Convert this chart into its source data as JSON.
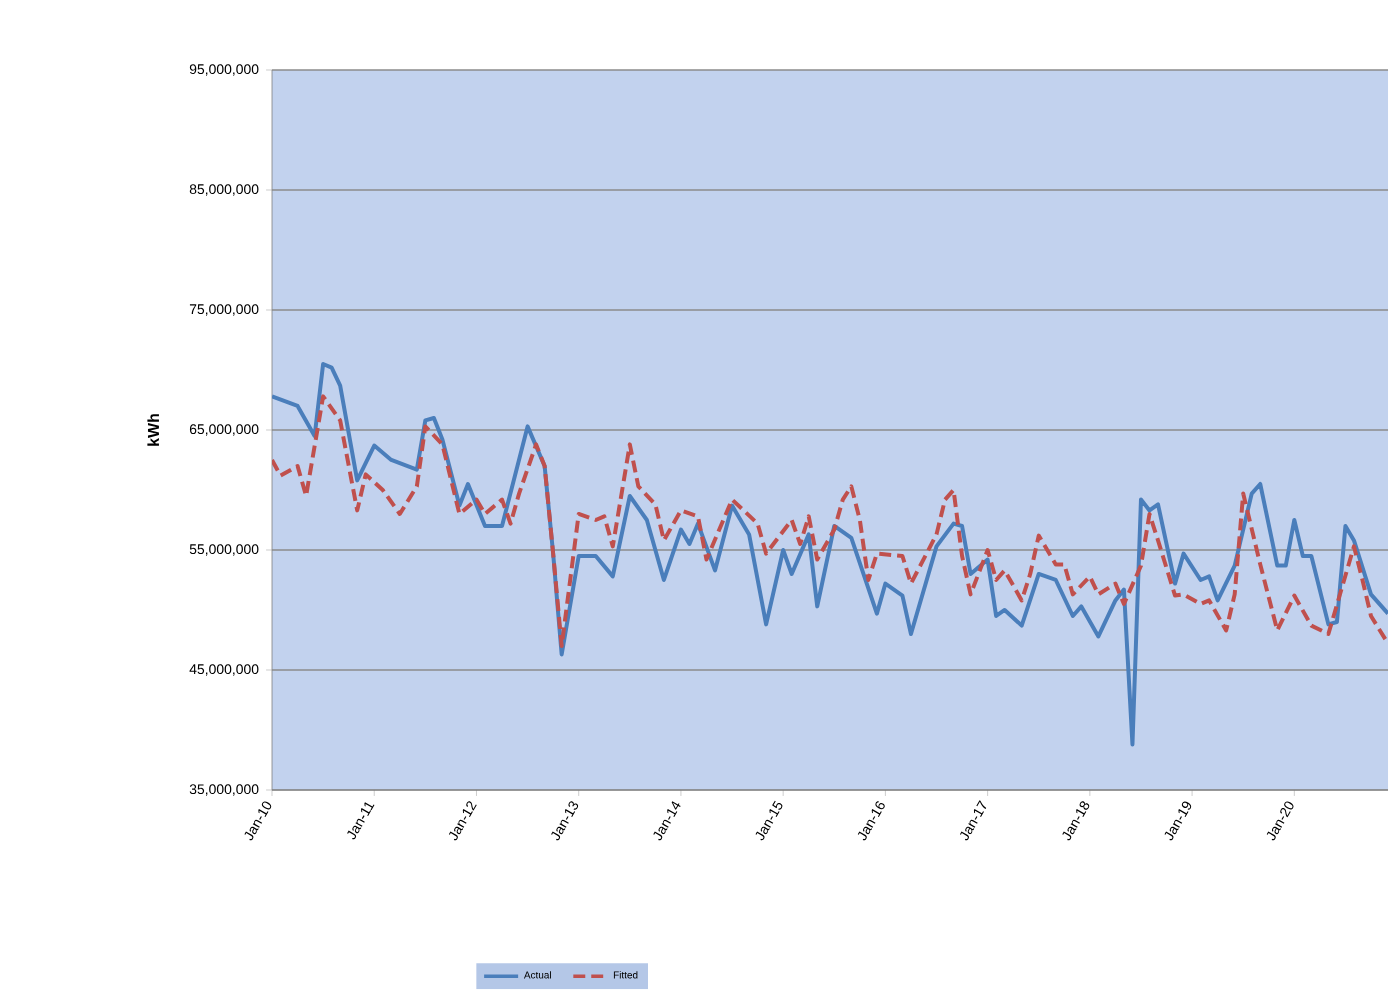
{
  "chart_data": {
    "type": "line",
    "ylabel": "kWh",
    "xlim": [
      "2010-01",
      "2020-12"
    ],
    "xticks": [
      {
        "value": "2010-01",
        "label": "Jan-10"
      },
      {
        "value": "2011-01",
        "label": "Jan-11"
      },
      {
        "value": "2012-01",
        "label": "Jan-12"
      },
      {
        "value": "2013-01",
        "label": "Jan-13"
      },
      {
        "value": "2014-01",
        "label": "Jan-14"
      },
      {
        "value": "2015-01",
        "label": "Jan-15"
      },
      {
        "value": "2016-01",
        "label": "Jan-16"
      },
      {
        "value": "2017-01",
        "label": "Jan-17"
      },
      {
        "value": "2018-01",
        "label": "Jan-18"
      },
      {
        "value": "2019-01",
        "label": "Jan-19"
      },
      {
        "value": "2020-01",
        "label": "Jan-20"
      }
    ],
    "ylim": [
      35000000,
      95000000
    ],
    "yticks": [
      {
        "value": 35000000,
        "label": "35,000,000"
      },
      {
        "value": 45000000,
        "label": "45,000,000"
      },
      {
        "value": 55000000,
        "label": "55,000,000"
      },
      {
        "value": 65000000,
        "label": "65,000,000"
      },
      {
        "value": 75000000,
        "label": "75,000,000"
      },
      {
        "value": 85000000,
        "label": "85,000,000"
      },
      {
        "value": 95000000,
        "label": "95,000,000"
      }
    ],
    "grid": "y",
    "legend": "bottom",
    "series": [
      {
        "name": "Actual",
        "color": "#4a7ebb",
        "line_style": "solid",
        "x": [
          "2010-01",
          "2010-04",
          "2010-06",
          "2010-07",
          "2010-08",
          "2010-09",
          "2010-11",
          "2011-01",
          "2011-03",
          "2011-06",
          "2011-07",
          "2011-08",
          "2011-09",
          "2011-11",
          "2011-12",
          "2012-02",
          "2012-04",
          "2012-07",
          "2012-09",
          "2012-10",
          "2012-11",
          "2013-01",
          "2013-03",
          "2013-05",
          "2013-07",
          "2013-09",
          "2013-11",
          "2014-01",
          "2014-02",
          "2014-03",
          "2014-05",
          "2014-07",
          "2014-09",
          "2014-11",
          "2015-01",
          "2015-02",
          "2015-04",
          "2015-05",
          "2015-07",
          "2015-09",
          "2015-12",
          "2016-01",
          "2016-03",
          "2016-04",
          "2016-07",
          "2016-09",
          "2016-10",
          "2016-11",
          "2017-01",
          "2017-02",
          "2017-03",
          "2017-05",
          "2017-07",
          "2017-09",
          "2017-11",
          "2017-12",
          "2018-02",
          "2018-04",
          "2018-05",
          "2018-06",
          "2018-07",
          "2018-08",
          "2018-09",
          "2018-11",
          "2018-12",
          "2019-02",
          "2019-03",
          "2019-04",
          "2019-06",
          "2019-08",
          "2019-09",
          "2019-11",
          "2019-12",
          "2020-01",
          "2020-02",
          "2020-03",
          "2020-05",
          "2020-06",
          "2020-07",
          "2020-08",
          "2020-10",
          "2020-12"
        ],
        "values": [
          67800000,
          67000000,
          64500000,
          70500000,
          70200000,
          68700000,
          60800000,
          63700000,
          62500000,
          61700000,
          65800000,
          66000000,
          64200000,
          58700000,
          60500000,
          57000000,
          57000000,
          65300000,
          62000000,
          54700000,
          46300000,
          54500000,
          54500000,
          52800000,
          59500000,
          57500000,
          52500000,
          56700000,
          55500000,
          57200000,
          53300000,
          58700000,
          56300000,
          48800000,
          55000000,
          53000000,
          56300000,
          50300000,
          57000000,
          56000000,
          49700000,
          52200000,
          51200000,
          48000000,
          55300000,
          57200000,
          57000000,
          53000000,
          54200000,
          49500000,
          50000000,
          48700000,
          53000000,
          52500000,
          49500000,
          50300000,
          47800000,
          50800000,
          51700000,
          38800000,
          59200000,
          58300000,
          58800000,
          52200000,
          54700000,
          52500000,
          52800000,
          50800000,
          53700000,
          59700000,
          60500000,
          53700000,
          53700000,
          57500000,
          54500000,
          54500000,
          48800000,
          49000000,
          57000000,
          55800000,
          51300000,
          49700000
        ]
      },
      {
        "name": "Fitted",
        "color": "#c0504d",
        "line_style": "dashed",
        "x": [
          "2010-01",
          "2010-02",
          "2010-04",
          "2010-05",
          "2010-07",
          "2010-09",
          "2010-11",
          "2010-12",
          "2011-02",
          "2011-04",
          "2011-06",
          "2011-07",
          "2011-09",
          "2011-11",
          "2012-01",
          "2012-02",
          "2012-04",
          "2012-05",
          "2012-06",
          "2012-08",
          "2012-09",
          "2012-10",
          "2012-11",
          "2013-01",
          "2013-03",
          "2013-04",
          "2013-05",
          "2013-07",
          "2013-08",
          "2013-10",
          "2013-11",
          "2014-01",
          "2014-03",
          "2014-04",
          "2014-07",
          "2014-10",
          "2014-11",
          "2015-02",
          "2015-03",
          "2015-04",
          "2015-05",
          "2015-07",
          "2015-08",
          "2015-09",
          "2015-10",
          "2015-11",
          "2015-12",
          "2016-03",
          "2016-04",
          "2016-07",
          "2016-08",
          "2016-09",
          "2016-10",
          "2016-11",
          "2017-01",
          "2017-02",
          "2017-03",
          "2017-05",
          "2017-06",
          "2017-07",
          "2017-09",
          "2017-10",
          "2017-11",
          "2018-01",
          "2018-02",
          "2018-04",
          "2018-05",
          "2018-07",
          "2018-08",
          "2018-09",
          "2018-11",
          "2018-12",
          "2019-02",
          "2019-03",
          "2019-05",
          "2019-06",
          "2019-07",
          "2019-09",
          "2019-11",
          "2020-01",
          "2020-03",
          "2020-05",
          "2020-08",
          "2020-09",
          "2020-10",
          "2020-12"
        ],
        "values": [
          62500000,
          61200000,
          62000000,
          59500000,
          67800000,
          65800000,
          58300000,
          61300000,
          60000000,
          58000000,
          60300000,
          65300000,
          63800000,
          58000000,
          59200000,
          58000000,
          59200000,
          57200000,
          59700000,
          63800000,
          62000000,
          54700000,
          47000000,
          58000000,
          57500000,
          57800000,
          55300000,
          63800000,
          60300000,
          58800000,
          55800000,
          58300000,
          57800000,
          54200000,
          59200000,
          57200000,
          54700000,
          57500000,
          55500000,
          57800000,
          54200000,
          56700000,
          59200000,
          60300000,
          57500000,
          52500000,
          54700000,
          54500000,
          52200000,
          56300000,
          59200000,
          60000000,
          54500000,
          51300000,
          55000000,
          52500000,
          53300000,
          50800000,
          53000000,
          56200000,
          53800000,
          53800000,
          51300000,
          52800000,
          51300000,
          52200000,
          50500000,
          53700000,
          58000000,
          55800000,
          51200000,
          51300000,
          50500000,
          50800000,
          48300000,
          51300000,
          59700000,
          53800000,
          48300000,
          51200000,
          48700000,
          48000000,
          55300000,
          52500000,
          49500000,
          47200000
        ]
      }
    ]
  }
}
